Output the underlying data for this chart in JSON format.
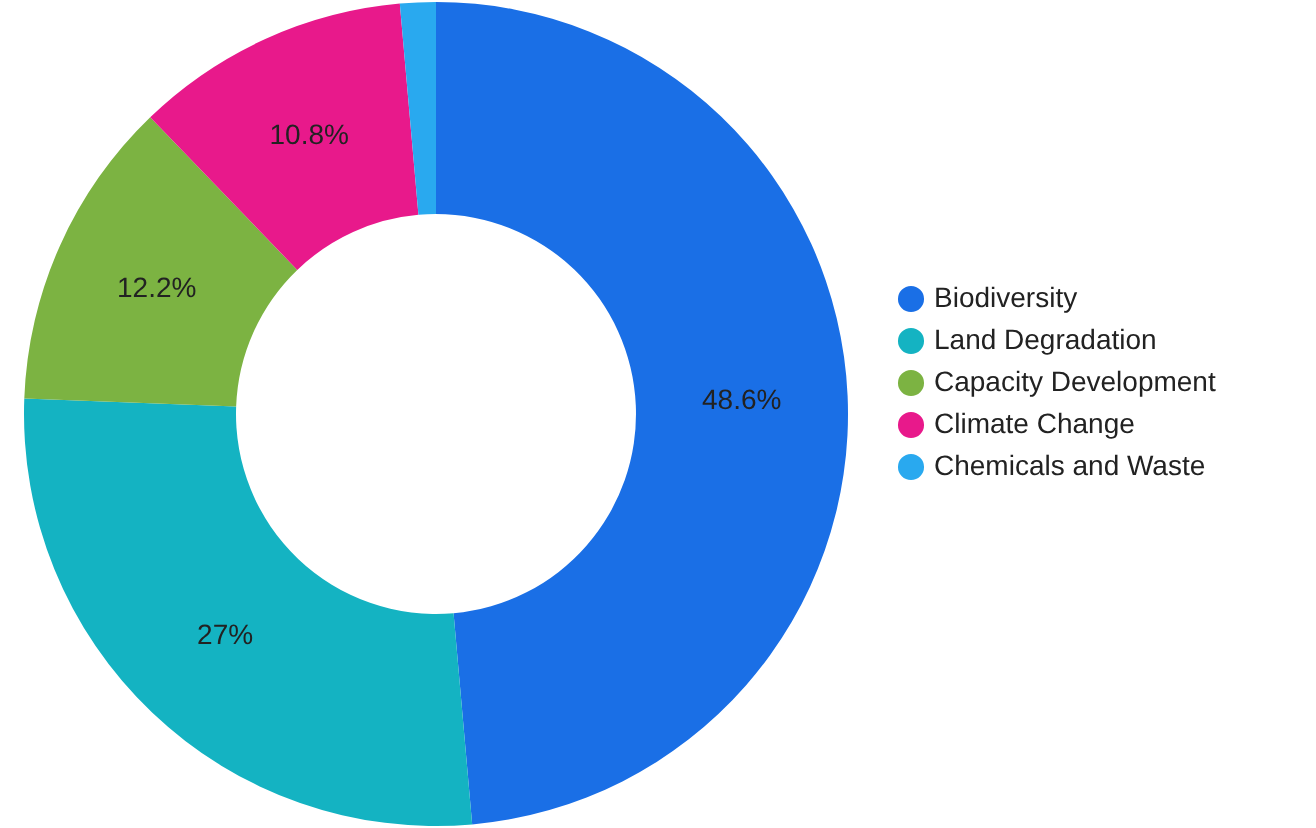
{
  "chart_data": {
    "type": "donut",
    "categories": [
      "Biodiversity",
      "Land Degradation",
      "Capacity Development",
      "Climate Change",
      "Chemicals and Waste"
    ],
    "values": [
      48.6,
      27,
      12.2,
      10.8,
      1.4
    ],
    "value_labels": [
      "48.6%",
      "27%",
      "12.2%",
      "10.8%",
      null
    ],
    "colors": [
      "#1a6fe6",
      "#14b3c2",
      "#7cb342",
      "#e8198b",
      "#29a9ef"
    ],
    "legend": "right"
  }
}
